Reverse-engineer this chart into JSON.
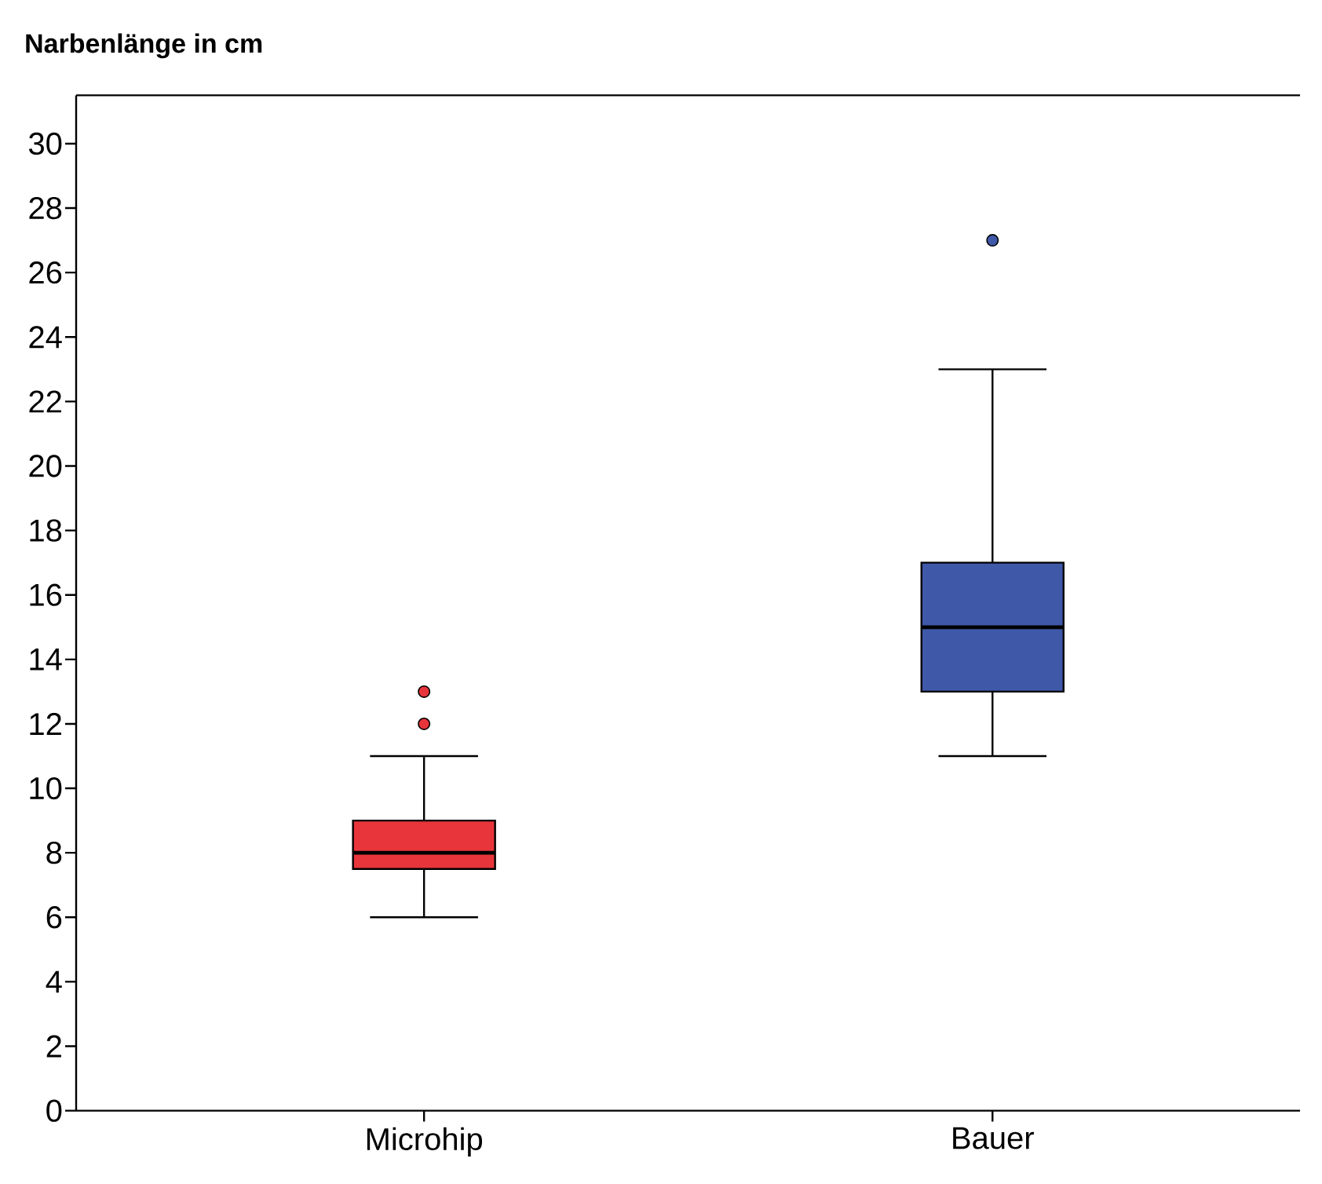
{
  "chart_data": {
    "type": "box",
    "title": "Narbenlänge in cm",
    "categories": [
      "Microhip",
      "Bauer"
    ],
    "boxes": [
      {
        "low": 6,
        "q1": 7.5,
        "median": 8,
        "q3": 9,
        "high": 11,
        "outliers": [
          12,
          13
        ]
      },
      {
        "low": 11,
        "q1": 13,
        "median": 15,
        "q3": 17,
        "high": 23,
        "outliers": [
          27
        ]
      }
    ],
    "colors": [
      "#e8353b",
      "#3f58a8"
    ],
    "ylim": [
      0,
      31.5
    ],
    "yticks": [
      0,
      2,
      4,
      6,
      8,
      10,
      12,
      14,
      16,
      18,
      20,
      22,
      24,
      26,
      28,
      30
    ]
  }
}
